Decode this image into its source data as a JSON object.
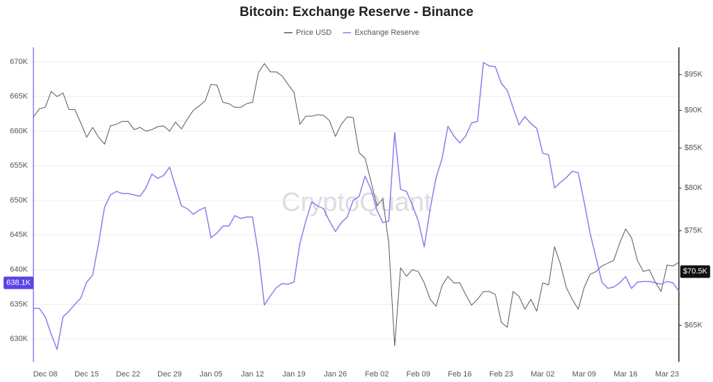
{
  "chart_data": {
    "type": "line",
    "title": "Bitcoin: Exchange Reserve - Binance",
    "watermark": "CryptoQuant",
    "categories": [
      null,
      null,
      "Dec 08",
      null,
      null,
      null,
      null,
      null,
      null,
      "Dec 15",
      null,
      null,
      null,
      null,
      null,
      null,
      "Dec 22",
      null,
      null,
      null,
      null,
      null,
      null,
      "Dec 29",
      null,
      null,
      null,
      null,
      null,
      null,
      "Jan 05",
      null,
      null,
      null,
      null,
      null,
      null,
      "Jan 12",
      null,
      null,
      null,
      null,
      null,
      null,
      "Jan 19",
      null,
      null,
      null,
      null,
      null,
      null,
      "Jan 26",
      null,
      null,
      null,
      null,
      null,
      null,
      "Feb 02",
      null,
      null,
      null,
      null,
      null,
      null,
      "Feb 09",
      null,
      null,
      null,
      null,
      null,
      null,
      "Feb 16",
      null,
      null,
      null,
      null,
      null,
      null,
      "Feb 23",
      null,
      null,
      null,
      null,
      null,
      null,
      "Mar 02",
      null,
      null,
      null,
      null,
      null,
      null,
      "Mar 09",
      null,
      null,
      null,
      null,
      null,
      null,
      "Mar 16",
      null,
      null,
      null,
      null,
      null,
      null,
      "Mar 23",
      null,
      null
    ],
    "series": [
      {
        "name": "Price USD",
        "color": "#555555",
        "axis": "y2",
        "values": [
          89100,
          90200,
          90400,
          92600,
          91900,
          92400,
          90100,
          90100,
          88300,
          86400,
          87700,
          86400,
          85500,
          87900,
          88100,
          88500,
          88500,
          87400,
          87700,
          87200,
          87400,
          87800,
          87900,
          87200,
          88400,
          87500,
          88800,
          90000,
          90600,
          91300,
          93600,
          93500,
          91100,
          90900,
          90400,
          90400,
          90900,
          91100,
          95300,
          96600,
          95400,
          95400,
          94800,
          93600,
          92500,
          88100,
          89200,
          89200,
          89400,
          89300,
          88600,
          86500,
          88100,
          89100,
          89000,
          84400,
          83700,
          80800,
          77900,
          78700,
          73600,
          63000,
          70900,
          70000,
          70700,
          70500,
          69300,
          67600,
          66900,
          69000,
          70000,
          69300,
          69300,
          68100,
          67000,
          67600,
          68400,
          68400,
          68100,
          65300,
          64800,
          68400,
          67900,
          66600,
          67600,
          66400,
          69300,
          69100,
          73200,
          71300,
          68800,
          67600,
          66600,
          68800,
          70200,
          70500,
          71100,
          71400,
          71700,
          73600,
          75200,
          74200,
          71700,
          70500,
          70700,
          69400,
          68400,
          71200,
          71100,
          71500
        ]
      },
      {
        "name": "Exchange Reserve",
        "color": "#8b7cf0",
        "axis": "y",
        "values": [
          634400,
          634400,
          633200,
          630700,
          628500,
          633200,
          634000,
          635000,
          635900,
          638200,
          639200,
          643800,
          649000,
          650800,
          651300,
          651000,
          651000,
          650800,
          650600,
          651800,
          653800,
          653200,
          653600,
          654800,
          652000,
          649200,
          648800,
          648000,
          648600,
          649000,
          644600,
          645300,
          646300,
          646300,
          647800,
          647400,
          647600,
          647600,
          642300,
          634900,
          636200,
          637400,
          638000,
          637900,
          638200,
          643800,
          647000,
          649800,
          649200,
          648800,
          647000,
          645500,
          646800,
          647600,
          650000,
          650600,
          653500,
          651600,
          648600,
          646800,
          647000,
          659800,
          651600,
          651300,
          649300,
          647000,
          643300,
          648800,
          653300,
          656000,
          660700,
          659300,
          658300,
          659300,
          661200,
          661400,
          669900,
          669400,
          669300,
          666900,
          665900,
          663400,
          660900,
          662100,
          661100,
          660400,
          656800,
          656600,
          651800,
          652600,
          653300,
          654200,
          654000,
          649800,
          645300,
          641800,
          638200,
          637300,
          637500,
          638100,
          639000,
          637300,
          638200,
          638300,
          638300,
          638100,
          637900,
          638300,
          638100,
          636900
        ]
      }
    ],
    "ylim": [
      626700,
      672100
    ],
    "yticks": [
      {
        "value": 630000,
        "label": "630K"
      },
      {
        "value": 635000,
        "label": "635K"
      },
      {
        "value": 640000,
        "label": "640K"
      },
      {
        "value": 645000,
        "label": "645K"
      },
      {
        "value": 650000,
        "label": "650K"
      },
      {
        "value": 655000,
        "label": "655K"
      },
      {
        "value": 660000,
        "label": "660K"
      },
      {
        "value": 665000,
        "label": "665K"
      },
      {
        "value": 670000,
        "label": "670K"
      }
    ],
    "y2lim": [
      61500,
      99000
    ],
    "y2log": true,
    "y2ticks": [
      {
        "value": 65000,
        "label": "$65K"
      },
      {
        "value": 75000,
        "label": "$75K"
      },
      {
        "value": 80000,
        "label": "$80K"
      },
      {
        "value": 85000,
        "label": "$85K"
      },
      {
        "value": 90000,
        "label": "$90K"
      },
      {
        "value": 95000,
        "label": "$95K"
      }
    ],
    "annotations": [
      {
        "text": "638.1K",
        "value": 638100,
        "axis": "y",
        "color": "#5b45e6"
      },
      {
        "text": "$70.5K",
        "value": 70500,
        "axis": "y2",
        "color": "#111111"
      }
    ],
    "grid": true,
    "legend": "top"
  }
}
